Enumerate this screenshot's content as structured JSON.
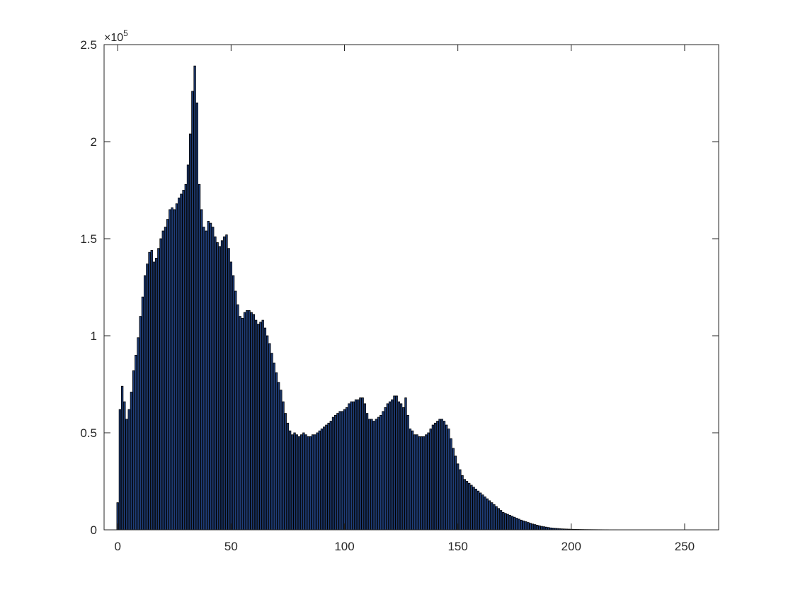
{
  "chart_data": {
    "type": "bar",
    "title": "",
    "xlabel": "",
    "ylabel": "",
    "xlim": [
      -6,
      265
    ],
    "ylim": [
      0,
      250000
    ],
    "grid": false,
    "x_ticks": [
      0,
      50,
      100,
      150,
      200,
      250
    ],
    "x_tick_labels": [
      "0",
      "50",
      "100",
      "150",
      "200",
      "250"
    ],
    "y_ticks": [
      0,
      50000,
      100000,
      150000,
      200000,
      250000
    ],
    "y_tick_labels": [
      "0",
      "0.5",
      "1",
      "1.5",
      "2",
      "2.5"
    ],
    "y_exponent_base": "×10",
    "y_exponent_power": "5",
    "bar_color": "#1f3e7a",
    "edge_color": "#000000",
    "x_start": 0,
    "values": [
      14000,
      62000,
      74000,
      66000,
      57000,
      62000,
      71000,
      82000,
      90000,
      99000,
      110000,
      120000,
      131000,
      137000,
      143000,
      144000,
      138000,
      140000,
      145000,
      150000,
      154000,
      156000,
      160000,
      165000,
      166000,
      165000,
      168000,
      171000,
      173000,
      175000,
      178000,
      188000,
      204000,
      226000,
      239000,
      220000,
      178000,
      165000,
      156000,
      154000,
      159000,
      158000,
      156000,
      151000,
      148000,
      146000,
      149000,
      151000,
      152000,
      145000,
      138000,
      131000,
      123000,
      116000,
      110000,
      109000,
      112000,
      113000,
      113000,
      112000,
      111000,
      108000,
      106000,
      107000,
      108000,
      104000,
      100000,
      96000,
      91000,
      86000,
      81000,
      76000,
      72000,
      66000,
      60000,
      55000,
      51000,
      49000,
      50000,
      49000,
      48000,
      49000,
      50000,
      49000,
      48000,
      48000,
      49000,
      49000,
      50000,
      51000,
      52000,
      53000,
      54000,
      55000,
      56000,
      58000,
      59000,
      60000,
      61000,
      61000,
      62000,
      63000,
      65000,
      66000,
      66000,
      67000,
      67000,
      68000,
      68000,
      65000,
      60000,
      57000,
      57000,
      56000,
      57000,
      58000,
      59000,
      61000,
      63000,
      65000,
      66000,
      67000,
      69000,
      69000,
      66000,
      65000,
      63000,
      68000,
      59000,
      52000,
      51000,
      49000,
      49000,
      48000,
      48000,
      48000,
      49000,
      50000,
      52000,
      54000,
      55000,
      56000,
      57000,
      57000,
      56000,
      54000,
      52000,
      47000,
      42000,
      38000,
      34000,
      31000,
      28000,
      26000,
      25000,
      24000,
      23000,
      22000,
      21000,
      20000,
      19000,
      18000,
      17000,
      16000,
      15000,
      14000,
      13000,
      12000,
      11000,
      10000,
      9000,
      8500,
      8000,
      7500,
      7000,
      6500,
      6000,
      5500,
      5000,
      4600,
      4200,
      3800,
      3400,
      3000,
      2700,
      2400,
      2100,
      1800,
      1600,
      1400,
      1200,
      1000,
      900,
      800,
      700,
      600,
      500,
      450,
      400,
      350,
      300,
      260,
      220,
      200,
      180,
      160,
      140,
      130,
      120,
      110,
      100,
      90,
      80,
      70,
      60,
      50,
      50,
      40,
      40,
      40,
      40,
      30,
      30,
      30,
      30,
      30,
      30,
      30,
      30,
      30,
      30,
      30,
      30,
      30,
      30,
      30,
      30,
      30,
      30,
      30,
      30,
      30,
      30,
      30,
      30,
      30,
      30,
      30,
      30,
      30,
      30,
      30,
      30,
      30,
      30,
      30,
      30,
      30,
      30,
      30,
      30,
      30
    ]
  }
}
